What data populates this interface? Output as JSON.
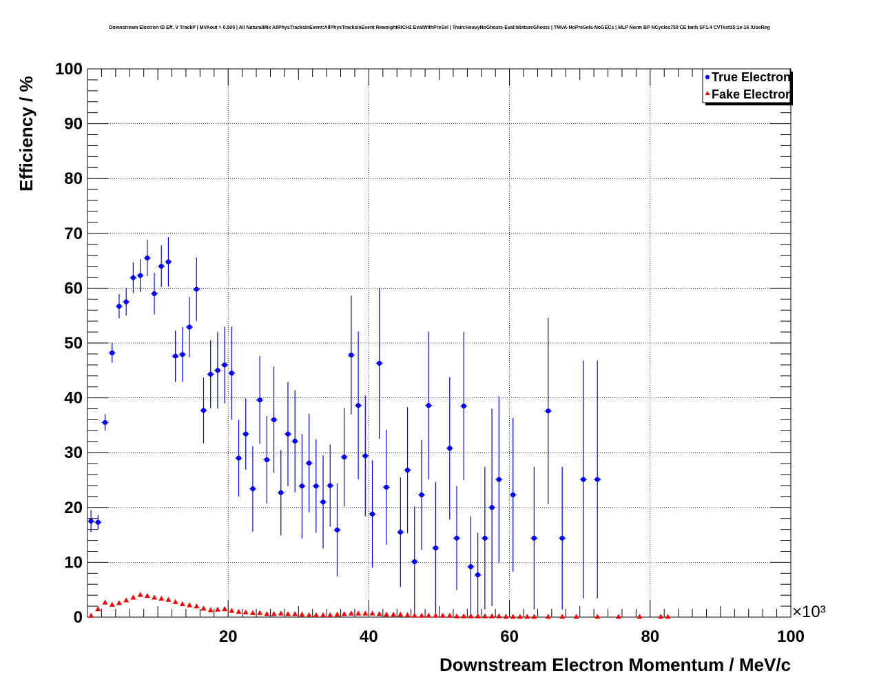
{
  "chart_data": {
    "type": "scatter",
    "title": "Downstream Electron ID Eff. V TrackP | MVAout > 0.500 | All NaturalMix AllPhysTracksInEvent:AllPhysTracksInEvent ReweightRICH2 EvalWithPreSel | Train:HeavyNoGhosts-Eval:MixtureGhosts | TMVA-NoPreSels-NoGECs | MLP Norm BP NCycles750 CE tanh SF1.4 CVTest15:1e-16 !UseReg",
    "xlabel": "Downstream Electron Momentum / MeV/c",
    "ylabel": "Efficiency / %",
    "x_multiplier_label": "×10³",
    "xlim": [
      0,
      100
    ],
    "ylim": [
      0,
      100
    ],
    "x_unit_scale": 1000,
    "grid": true,
    "legend_position": "top-right",
    "x_ticks": [
      "20",
      "40",
      "60",
      "80",
      "100"
    ],
    "y_ticks": [
      "0",
      "10",
      "20",
      "30",
      "40",
      "50",
      "60",
      "70",
      "80",
      "90",
      "100"
    ],
    "series": [
      {
        "name": "True Electron",
        "color": "#0000ff",
        "marker": "circle",
        "points": [
          {
            "x": 0.5,
            "y": 17.5,
            "err": 2.0
          },
          {
            "x": 1.5,
            "y": 17.3,
            "err": 1.3
          },
          {
            "x": 2.5,
            "y": 35.5,
            "err": 1.5
          },
          {
            "x": 3.5,
            "y": 48.2,
            "err": 1.8
          },
          {
            "x": 4.5,
            "y": 56.7,
            "err": 2.2
          },
          {
            "x": 5.5,
            "y": 57.5,
            "err": 2.5
          },
          {
            "x": 6.5,
            "y": 61.9,
            "err": 2.8
          },
          {
            "x": 7.5,
            "y": 62.3,
            "err": 3.0
          },
          {
            "x": 8.5,
            "y": 65.5,
            "err": 3.3
          },
          {
            "x": 9.5,
            "y": 59.0,
            "err": 3.8
          },
          {
            "x": 10.5,
            "y": 64.0,
            "err": 3.8
          },
          {
            "x": 11.5,
            "y": 64.8,
            "err": 4.5
          },
          {
            "x": 12.5,
            "y": 47.6,
            "err": 4.7
          },
          {
            "x": 13.5,
            "y": 47.9,
            "err": 5.0
          },
          {
            "x": 14.5,
            "y": 52.9,
            "err": 5.5
          },
          {
            "x": 15.5,
            "y": 59.8,
            "err": 5.8
          },
          {
            "x": 16.5,
            "y": 37.7,
            "err": 6.0
          },
          {
            "x": 17.5,
            "y": 44.3,
            "err": 6.2
          },
          {
            "x": 18.5,
            "y": 45.0,
            "err": 7.0
          },
          {
            "x": 19.5,
            "y": 46.0,
            "err": 7.0
          },
          {
            "x": 20.5,
            "y": 44.5,
            "err": 8.5
          },
          {
            "x": 21.5,
            "y": 29.0,
            "err": 7.0
          },
          {
            "x": 22.5,
            "y": 33.4,
            "err": 6.5
          },
          {
            "x": 23.5,
            "y": 23.4,
            "err": 7.8
          },
          {
            "x": 24.5,
            "y": 39.6,
            "err": 8.0
          },
          {
            "x": 25.5,
            "y": 28.7,
            "err": 8.0
          },
          {
            "x": 26.5,
            "y": 36.0,
            "err": 9.7
          },
          {
            "x": 27.5,
            "y": 22.7,
            "err": 7.8
          },
          {
            "x": 28.5,
            "y": 33.4,
            "err": 9.5
          },
          {
            "x": 29.5,
            "y": 32.1,
            "err": 9.3
          },
          {
            "x": 30.5,
            "y": 23.9,
            "err": 9.5
          },
          {
            "x": 31.5,
            "y": 28.1,
            "err": 9.0
          },
          {
            "x": 32.5,
            "y": 23.9,
            "err": 8.5
          },
          {
            "x": 33.5,
            "y": 21.0,
            "err": 8.5
          },
          {
            "x": 34.5,
            "y": 24.0,
            "err": 7.5
          },
          {
            "x": 35.5,
            "y": 15.9,
            "err": 8.5
          },
          {
            "x": 36.5,
            "y": 29.2,
            "err": 9.0
          },
          {
            "x": 37.5,
            "y": 47.8,
            "err": 10.8
          },
          {
            "x": 38.5,
            "y": 38.6,
            "err": 13.5
          },
          {
            "x": 39.5,
            "y": 29.4,
            "err": 11.0
          },
          {
            "x": 40.5,
            "y": 18.8,
            "err": 9.8
          },
          {
            "x": 41.5,
            "y": 46.3,
            "err": 13.8
          },
          {
            "x": 42.5,
            "y": 23.7,
            "err": 10.5
          },
          {
            "x": 44.5,
            "y": 15.5,
            "err": 10.0
          },
          {
            "x": 45.5,
            "y": 26.8,
            "err": 11.5
          },
          {
            "x": 46.5,
            "y": 10.1,
            "err": 10.1
          },
          {
            "x": 47.5,
            "y": 22.3,
            "err": 10.0
          },
          {
            "x": 48.5,
            "y": 38.6,
            "err": 13.5
          },
          {
            "x": 49.5,
            "y": 12.6,
            "err": 12.0
          },
          {
            "x": 51.5,
            "y": 30.8,
            "err": 13.0
          },
          {
            "x": 52.5,
            "y": 14.4,
            "err": 9.5
          },
          {
            "x": 53.5,
            "y": 38.5,
            "err": 13.5
          },
          {
            "x": 54.5,
            "y": 9.2,
            "err": 9.2
          },
          {
            "x": 55.5,
            "y": 7.7,
            "err": 7.7
          },
          {
            "x": 56.5,
            "y": 14.4,
            "err": 13.0
          },
          {
            "x": 57.5,
            "y": 20.0,
            "err": 18.0
          },
          {
            "x": 58.5,
            "y": 25.1,
            "err": 15.2
          },
          {
            "x": 60.5,
            "y": 22.3,
            "err": 14.0
          },
          {
            "x": 63.5,
            "y": 14.4,
            "err": 13.0
          },
          {
            "x": 65.5,
            "y": 37.6,
            "err": 17.0
          },
          {
            "x": 67.5,
            "y": 14.4,
            "err": 13.0
          },
          {
            "x": 70.5,
            "y": 25.1,
            "err": 21.7
          },
          {
            "x": 72.5,
            "y": 25.1,
            "err": 21.7
          }
        ]
      },
      {
        "name": "Fake Electron",
        "color": "#ff0000",
        "marker": "triangle",
        "points": [
          {
            "x": 0.5,
            "y": 0.3
          },
          {
            "x": 1.5,
            "y": 1.5
          },
          {
            "x": 2.5,
            "y": 2.7
          },
          {
            "x": 3.5,
            "y": 2.3
          },
          {
            "x": 4.5,
            "y": 2.6
          },
          {
            "x": 5.5,
            "y": 3.1
          },
          {
            "x": 6.5,
            "y": 3.6
          },
          {
            "x": 7.5,
            "y": 4.1
          },
          {
            "x": 8.5,
            "y": 3.9
          },
          {
            "x": 9.5,
            "y": 3.6
          },
          {
            "x": 10.5,
            "y": 3.4
          },
          {
            "x": 11.5,
            "y": 3.2
          },
          {
            "x": 12.5,
            "y": 2.8
          },
          {
            "x": 13.5,
            "y": 2.4
          },
          {
            "x": 14.5,
            "y": 2.2
          },
          {
            "x": 15.5,
            "y": 2.0
          },
          {
            "x": 16.5,
            "y": 1.6
          },
          {
            "x": 17.5,
            "y": 1.3
          },
          {
            "x": 18.5,
            "y": 1.4
          },
          {
            "x": 19.5,
            "y": 1.5
          },
          {
            "x": 20.5,
            "y": 1.2
          },
          {
            "x": 21.5,
            "y": 1.0
          },
          {
            "x": 22.5,
            "y": 0.9
          },
          {
            "x": 23.5,
            "y": 0.8
          },
          {
            "x": 24.5,
            "y": 0.8
          },
          {
            "x": 25.5,
            "y": 0.6
          },
          {
            "x": 26.5,
            "y": 0.6
          },
          {
            "x": 27.5,
            "y": 0.7
          },
          {
            "x": 28.5,
            "y": 0.6
          },
          {
            "x": 29.5,
            "y": 0.6
          },
          {
            "x": 30.5,
            "y": 0.5
          },
          {
            "x": 31.5,
            "y": 0.4
          },
          {
            "x": 32.5,
            "y": 0.4
          },
          {
            "x": 33.5,
            "y": 0.4
          },
          {
            "x": 34.5,
            "y": 0.4
          },
          {
            "x": 35.5,
            "y": 0.5
          },
          {
            "x": 36.5,
            "y": 0.6
          },
          {
            "x": 37.5,
            "y": 0.7
          },
          {
            "x": 38.5,
            "y": 0.7
          },
          {
            "x": 39.5,
            "y": 0.7
          },
          {
            "x": 40.5,
            "y": 0.7
          },
          {
            "x": 41.5,
            "y": 0.6
          },
          {
            "x": 42.5,
            "y": 0.5
          },
          {
            "x": 43.5,
            "y": 0.5
          },
          {
            "x": 44.5,
            "y": 0.5
          },
          {
            "x": 45.5,
            "y": 0.4
          },
          {
            "x": 46.5,
            "y": 0.3
          },
          {
            "x": 47.5,
            "y": 0.3
          },
          {
            "x": 48.5,
            "y": 0.3
          },
          {
            "x": 49.5,
            "y": 0.3
          },
          {
            "x": 50.5,
            "y": 0.3
          },
          {
            "x": 51.5,
            "y": 0.3
          },
          {
            "x": 52.5,
            "y": 0.2
          },
          {
            "x": 53.5,
            "y": 0.2
          },
          {
            "x": 54.5,
            "y": 0.2
          },
          {
            "x": 55.5,
            "y": 0.2
          },
          {
            "x": 56.5,
            "y": 0.2
          },
          {
            "x": 57.5,
            "y": 0.2
          },
          {
            "x": 58.5,
            "y": 0.2
          },
          {
            "x": 59.5,
            "y": 0.1
          },
          {
            "x": 60.5,
            "y": 0.1
          },
          {
            "x": 61.5,
            "y": 0.1
          },
          {
            "x": 62.5,
            "y": 0.1
          },
          {
            "x": 63.5,
            "y": 0.1
          },
          {
            "x": 65.5,
            "y": 0.1
          },
          {
            "x": 67.5,
            "y": 0.1
          },
          {
            "x": 69.5,
            "y": 0.1
          },
          {
            "x": 72.5,
            "y": 0.1
          },
          {
            "x": 75.5,
            "y": 0.1
          },
          {
            "x": 78.5,
            "y": 0.1
          },
          {
            "x": 81.5,
            "y": 0.1
          },
          {
            "x": 82.5,
            "y": 0.1
          }
        ]
      }
    ]
  }
}
